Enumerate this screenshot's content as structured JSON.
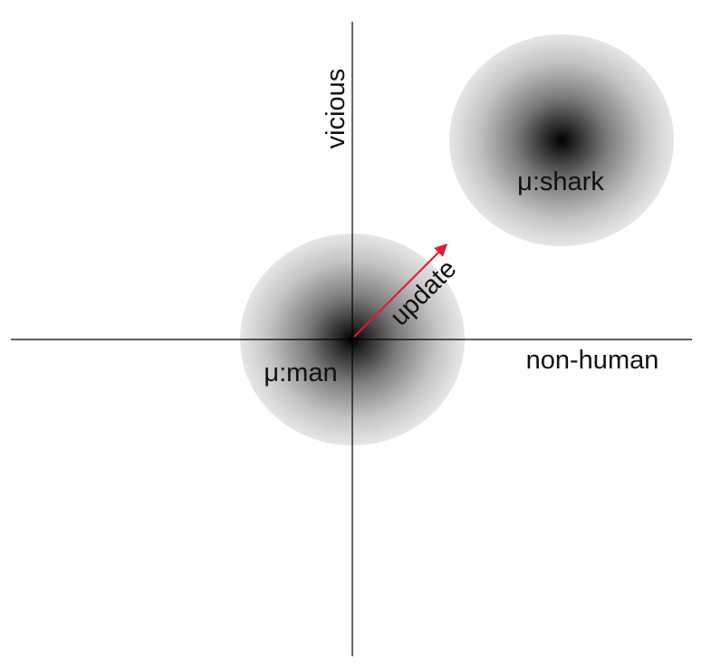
{
  "axes": {
    "x_label": "non-human",
    "y_label": "vicious"
  },
  "clusters": [
    {
      "label": "μ:man"
    },
    {
      "label": "μ:shark"
    }
  ],
  "update_arrow": {
    "label": "update",
    "color": "#e8172c"
  },
  "colors": {
    "axis": "#000000",
    "cluster_center": "#000000",
    "cluster_edge": "#e6e6e6"
  }
}
